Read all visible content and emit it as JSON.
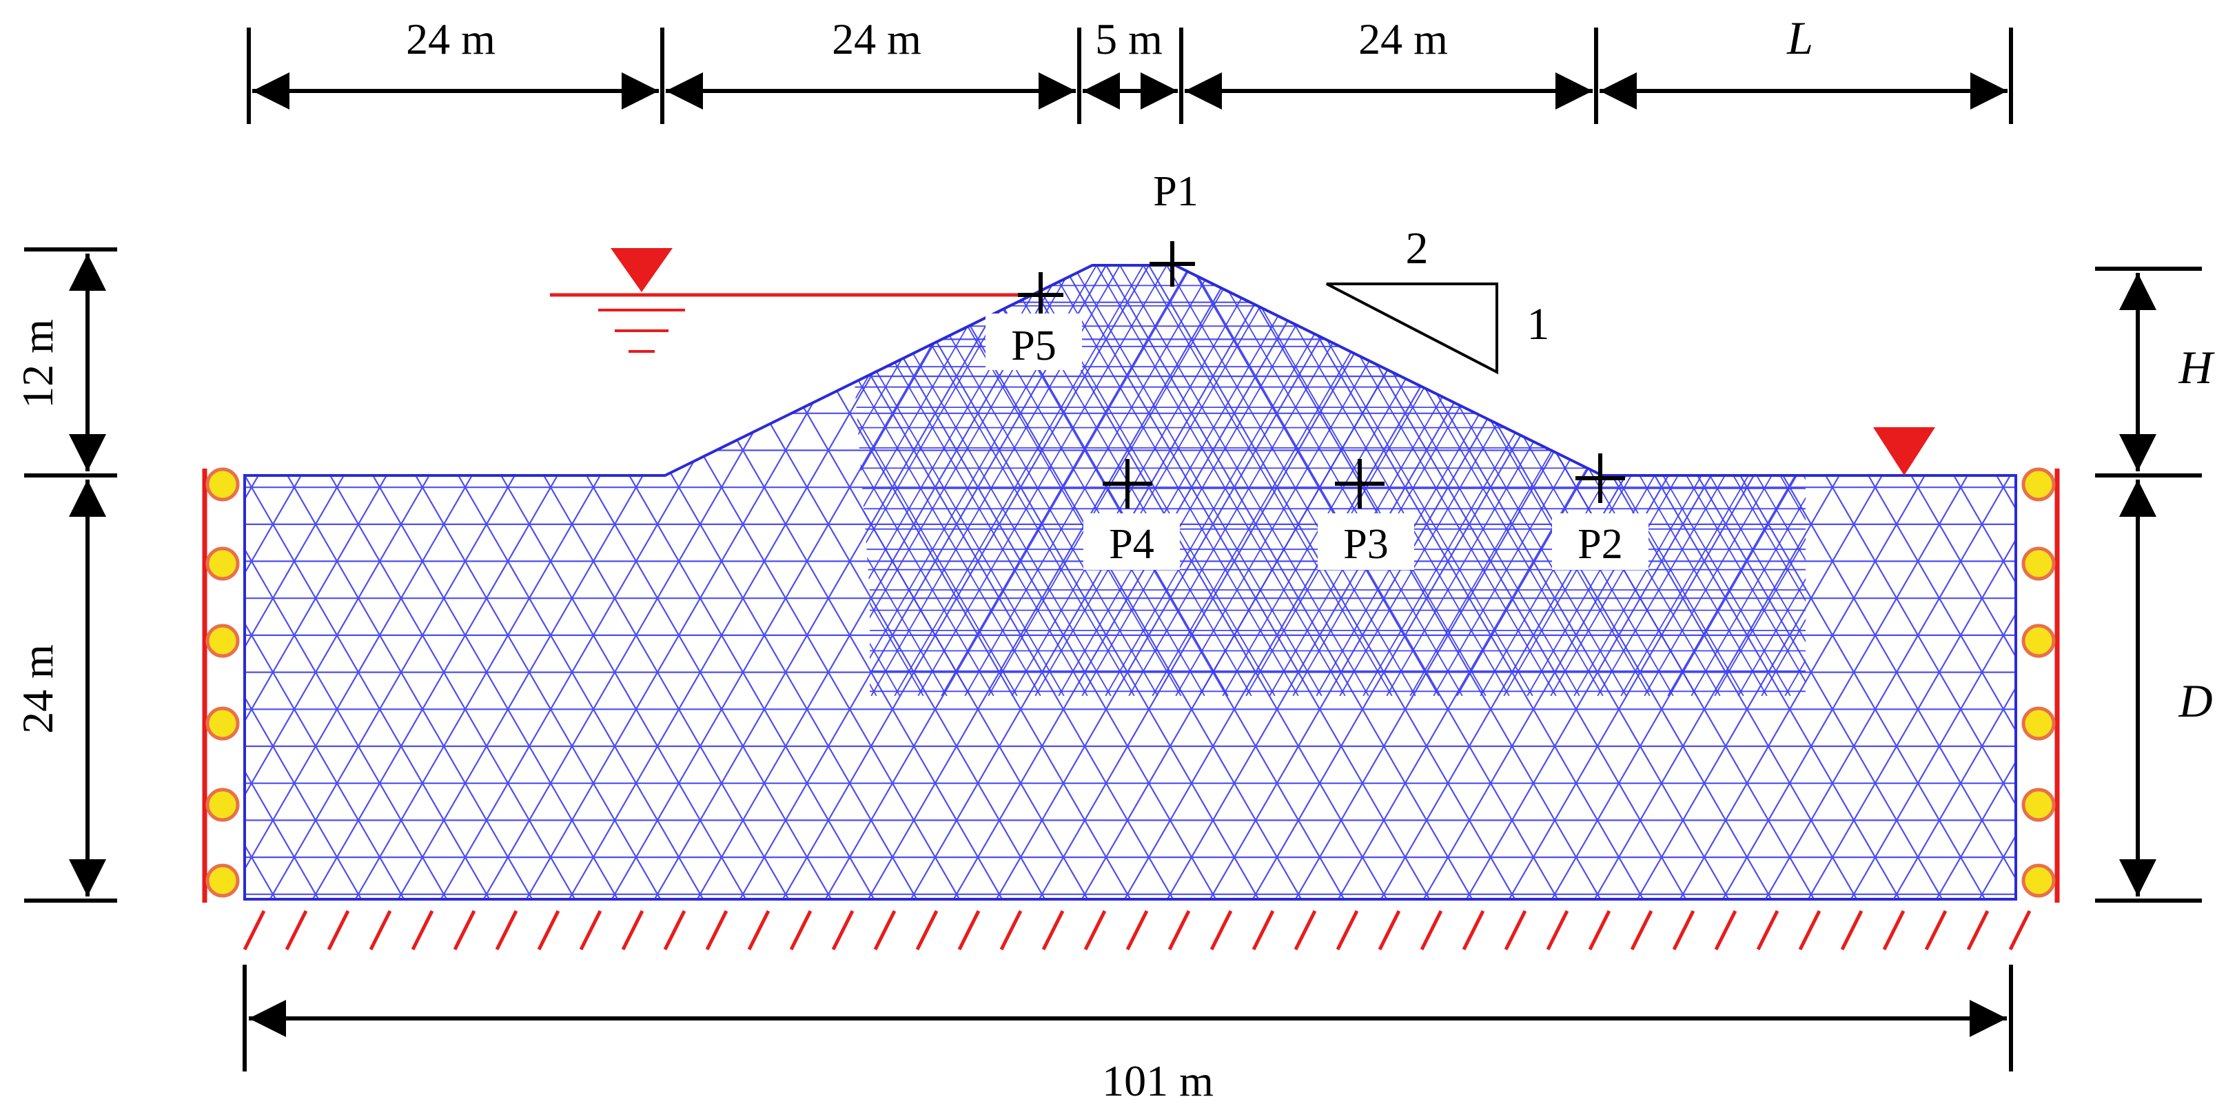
{
  "colors": {
    "mesh": "#3b3bf0",
    "mesh_outline": "#2a2ad8",
    "boundary": "#e81c1c",
    "roller_fill": "#f7e21a",
    "roller_stroke": "#e8704a",
    "water": "#e81c1c",
    "ink": "#000000"
  },
  "dimensions": {
    "top": [
      "24 m",
      "24 m",
      "5 m",
      "24 m",
      "L"
    ],
    "left_upper": "12 m",
    "left_lower": "24 m",
    "right_upper": "H",
    "right_lower": "D",
    "bottom": "101 m"
  },
  "points": [
    {
      "id": "p1",
      "label": "P1"
    },
    {
      "id": "p2",
      "label": "P2"
    },
    {
      "id": "p3",
      "label": "P3"
    },
    {
      "id": "p4",
      "label": "P4"
    },
    {
      "id": "p5",
      "label": "P5"
    }
  ],
  "slope_ratio": {
    "run": "2",
    "rise": "1"
  },
  "icons": {
    "water_level_left": "water-level-marker-icon",
    "water_level_right": "water-level-marker-icon",
    "roller": "roller-support-icon",
    "fixed_base": "fixed-base-hatch-icon"
  }
}
